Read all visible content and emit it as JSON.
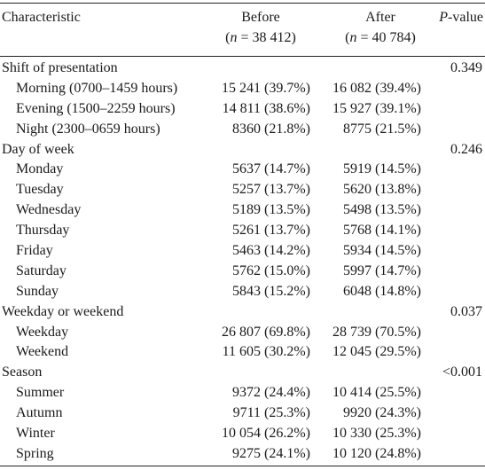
{
  "header": {
    "characteristic": "Characteristic",
    "before_label": "Before",
    "before_n_prefix": "(",
    "before_n_italic": "n",
    "before_n_value": " = 38 412)",
    "after_label": "After",
    "after_n_prefix": "(",
    "after_n_italic": "n",
    "after_n_value": " = 40 784)",
    "p_italic": "P",
    "p_rest": "-value"
  },
  "rows": [
    {
      "type": "group",
      "label": "Shift of presentation",
      "before": "",
      "after": "",
      "p": "0.349"
    },
    {
      "type": "sub",
      "label": "Morning (0700–1459 hours)",
      "before": "15 241 (39.7%)",
      "after": "16 082 (39.4%)",
      "p": ""
    },
    {
      "type": "sub",
      "label": "Evening (1500–2259 hours)",
      "before": "14 811 (38.6%)",
      "after": "15 927 (39.1%)",
      "p": ""
    },
    {
      "type": "sub",
      "label": "Night (2300–0659 hours)",
      "before": "8360 (21.8%)",
      "after": "8775 (21.5%)",
      "p": ""
    },
    {
      "type": "group",
      "label": "Day of week",
      "before": "",
      "after": "",
      "p": "0.246"
    },
    {
      "type": "sub",
      "label": "Monday",
      "before": "5637 (14.7%)",
      "after": "5919 (14.5%)",
      "p": ""
    },
    {
      "type": "sub",
      "label": "Tuesday",
      "before": "5257 (13.7%)",
      "after": "5620 (13.8%)",
      "p": ""
    },
    {
      "type": "sub",
      "label": "Wednesday",
      "before": "5189 (13.5%)",
      "after": "5498 (13.5%)",
      "p": ""
    },
    {
      "type": "sub",
      "label": "Thursday",
      "before": "5261 (13.7%)",
      "after": "5768 (14.1%)",
      "p": ""
    },
    {
      "type": "sub",
      "label": "Friday",
      "before": "5463 (14.2%)",
      "after": "5934 (14.5%)",
      "p": ""
    },
    {
      "type": "sub",
      "label": "Saturday",
      "before": "5762 (15.0%)",
      "after": "5997 (14.7%)",
      "p": ""
    },
    {
      "type": "sub",
      "label": "Sunday",
      "before": "5843 (15.2%)",
      "after": "6048 (14.8%)",
      "p": ""
    },
    {
      "type": "group",
      "label": "Weekday or weekend",
      "before": "",
      "after": "",
      "p": "0.037"
    },
    {
      "type": "sub",
      "label": "Weekday",
      "before": "26 807 (69.8%)",
      "after": "28 739 (70.5%)",
      "p": ""
    },
    {
      "type": "sub",
      "label": "Weekend",
      "before": "11 605 (30.2%)",
      "after": "12 045 (29.5%)",
      "p": ""
    },
    {
      "type": "group",
      "label": "Season",
      "before": "",
      "after": "",
      "p": "<0.001"
    },
    {
      "type": "sub",
      "label": "Summer",
      "before": "9372 (24.4%)",
      "after": "10 414 (25.5%)",
      "p": ""
    },
    {
      "type": "sub",
      "label": "Autumn",
      "before": "9711 (25.3%)",
      "after": "9920 (24.3%)",
      "p": ""
    },
    {
      "type": "sub",
      "label": "Winter",
      "before": "10 054 (26.2%)",
      "after": "10 330 (25.3%)",
      "p": ""
    },
    {
      "type": "sub",
      "label": "Spring",
      "before": "9275 (24.1%)",
      "after": "10 120 (24.8%)",
      "p": ""
    }
  ]
}
